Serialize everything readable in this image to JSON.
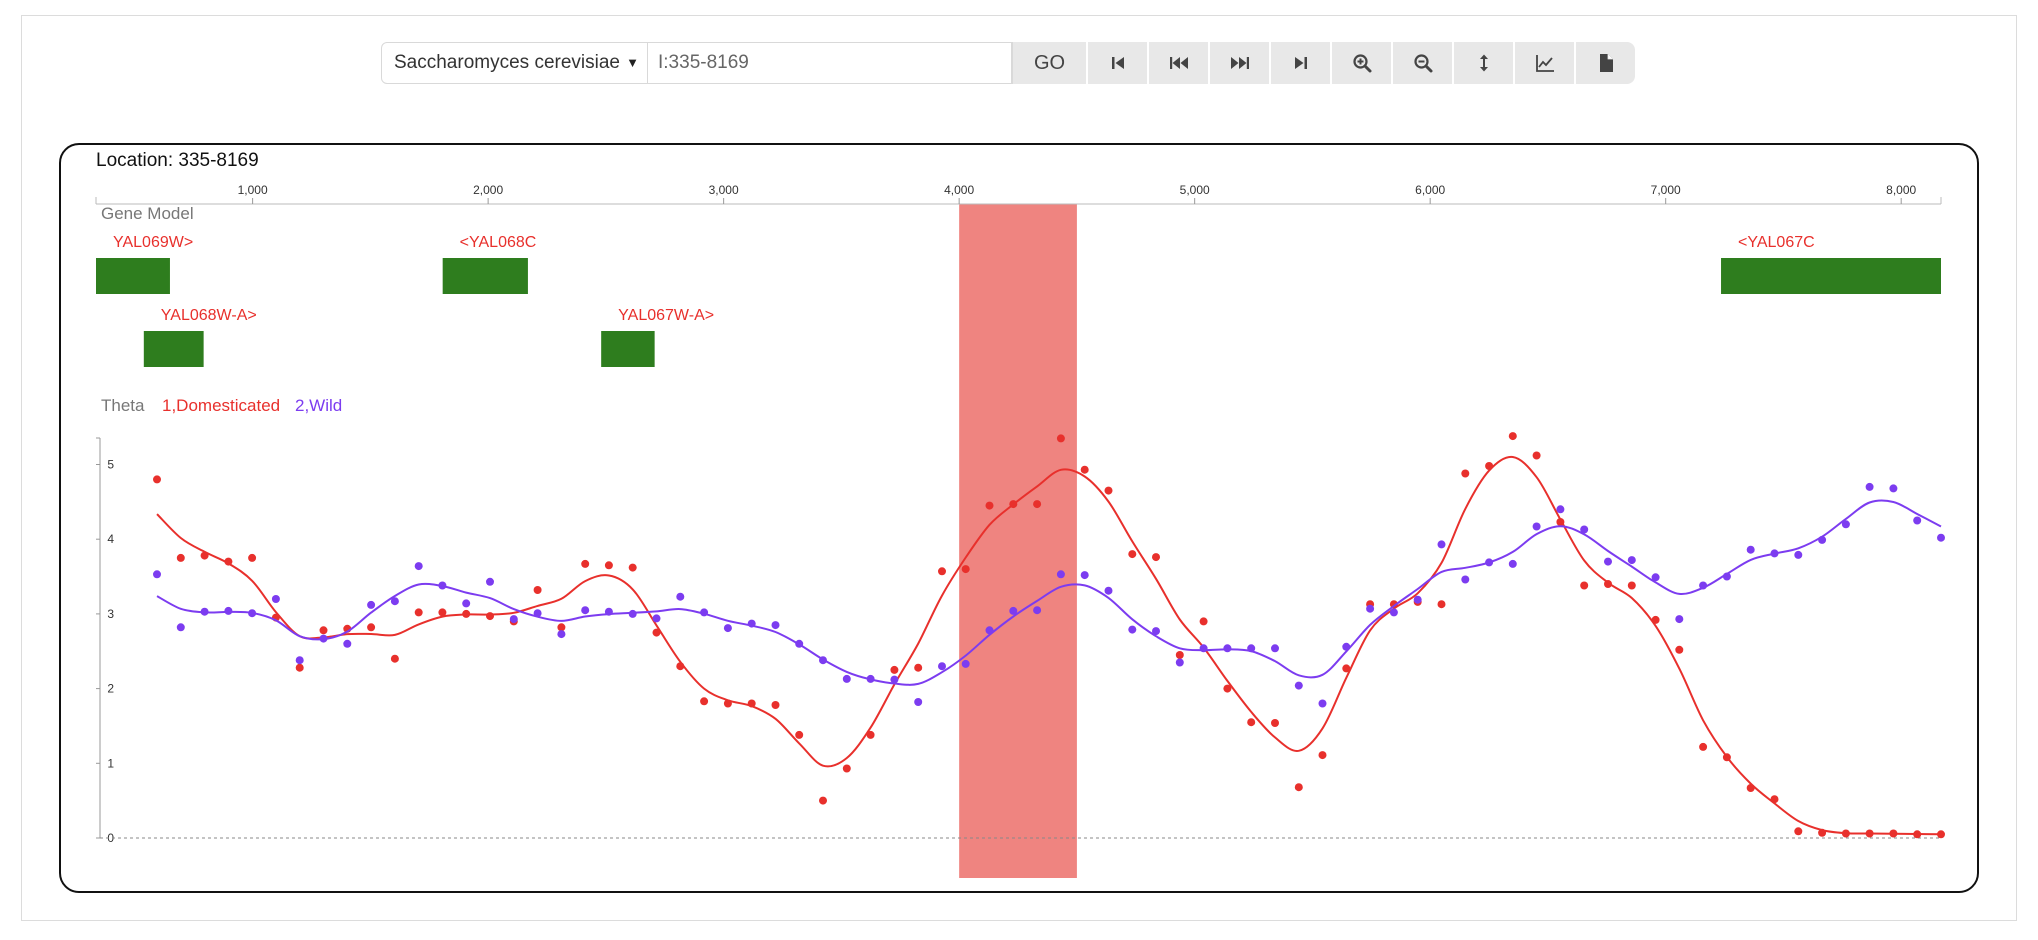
{
  "toolbar": {
    "species": "Saccharomyces cerevisiae",
    "location_value": "I:335-8169",
    "go_label": "GO",
    "buttons": [
      "jump-start",
      "step-back",
      "step-forward",
      "jump-end",
      "zoom-in",
      "zoom-out",
      "expand-height",
      "line-chart",
      "export"
    ]
  },
  "panel": {
    "location_label": "Location: 335-8169",
    "gene_model_label": "Gene Model",
    "ruler": {
      "range": [
        335,
        8169
      ],
      "ticks": [
        1000,
        2000,
        3000,
        4000,
        5000,
        6000,
        7000,
        8000
      ],
      "tick_labels": [
        "1,000",
        "2,000",
        "3,000",
        "4,000",
        "5,000",
        "6,000",
        "7,000",
        "8,000"
      ]
    },
    "genes": [
      {
        "name": "YAL069W>",
        "start": 335,
        "end": 649,
        "row": 0
      },
      {
        "name": "<YAL068C",
        "start": 1807,
        "end": 2169,
        "row": 0
      },
      {
        "name": "<YAL067C",
        "start": 7235,
        "end": 8169,
        "row": 0
      },
      {
        "name": "YAL068W-A>",
        "start": 538,
        "end": 792,
        "row": 1
      },
      {
        "name": "YAL067W-A>",
        "start": 2480,
        "end": 2707,
        "row": 1
      }
    ],
    "highlight": {
      "start": 4000,
      "end": 4500,
      "color": "#ef8480"
    },
    "colors": {
      "gene": "#2e7d1e",
      "gene_label": "#e8302c",
      "domesticated": "#e8302c",
      "wild": "#7c3cf0"
    }
  },
  "chart_data": {
    "type": "line",
    "legend_title": "Theta",
    "xlim": [
      335,
      8169
    ],
    "ylim": [
      0,
      5.5
    ],
    "y_ticks": [
      0,
      1,
      2,
      3,
      4,
      5
    ],
    "series": [
      {
        "name": "1,Domesticated",
        "color": "#e8302c",
        "x": [
          594,
          695,
          796,
          897,
          998,
          1099,
          1200,
          1301,
          1402,
          1503,
          1604,
          1705,
          1806,
          1907,
          2008,
          2109,
          2210,
          2311,
          2412,
          2513,
          2614,
          2715,
          2816,
          2917,
          3018,
          3119,
          3220,
          3321,
          3422,
          3523,
          3624,
          3725,
          3826,
          3927,
          4028,
          4129,
          4230,
          4331,
          4432,
          4533,
          4634,
          4735,
          4836,
          4937,
          5038,
          5139,
          5240,
          5341,
          5442,
          5543,
          5644,
          5745,
          5846,
          5947,
          6048,
          6149,
          6250,
          6351,
          6452,
          6553,
          6654,
          6755,
          6856,
          6957,
          7058,
          7159,
          7260,
          7361,
          7462,
          7563,
          7664,
          7765,
          7866,
          7967,
          8068,
          8169
        ],
        "y": [
          4.8,
          3.75,
          3.78,
          3.7,
          3.75,
          2.95,
          2.28,
          2.78,
          2.8,
          2.82,
          2.4,
          3.02,
          3.02,
          3.0,
          2.97,
          2.9,
          3.32,
          2.82,
          3.67,
          3.65,
          3.62,
          2.75,
          2.3,
          1.83,
          1.8,
          1.8,
          1.78,
          1.38,
          0.5,
          0.93,
          1.38,
          2.25,
          2.28,
          3.57,
          3.6,
          4.45,
          4.47,
          4.47,
          5.35,
          4.93,
          4.65,
          3.8,
          3.76,
          2.45,
          2.9,
          2.0,
          1.55,
          1.54,
          0.68,
          1.11,
          2.27,
          3.13,
          3.13,
          3.16,
          3.13,
          4.88,
          4.98,
          5.38,
          5.12,
          4.23,
          3.38,
          3.4,
          3.38,
          2.92,
          2.52,
          1.22,
          1.08,
          0.67,
          0.52,
          0.09,
          0.07,
          0.06,
          0.06,
          0.06,
          0.05,
          0.05
        ]
      },
      {
        "name": "2,Wild",
        "color": "#7c3cf0",
        "x": [
          594,
          695,
          796,
          897,
          998,
          1099,
          1200,
          1301,
          1402,
          1503,
          1604,
          1705,
          1806,
          1907,
          2008,
          2109,
          2210,
          2311,
          2412,
          2513,
          2614,
          2715,
          2816,
          2917,
          3018,
          3119,
          3220,
          3321,
          3422,
          3523,
          3624,
          3725,
          3826,
          3927,
          4028,
          4129,
          4230,
          4331,
          4432,
          4533,
          4634,
          4735,
          4836,
          4937,
          5038,
          5139,
          5240,
          5341,
          5442,
          5543,
          5644,
          5745,
          5846,
          5947,
          6048,
          6149,
          6250,
          6351,
          6452,
          6553,
          6654,
          6755,
          6856,
          6957,
          7058,
          7159,
          7260,
          7361,
          7462,
          7563,
          7664,
          7765,
          7866,
          7967,
          8068,
          8169
        ],
        "y": [
          3.53,
          2.82,
          3.03,
          3.04,
          3.01,
          3.2,
          2.38,
          2.67,
          2.6,
          3.12,
          3.17,
          3.64,
          3.38,
          3.14,
          3.43,
          2.93,
          3.01,
          2.73,
          3.05,
          3.03,
          3.0,
          2.94,
          3.23,
          3.02,
          2.81,
          2.87,
          2.85,
          2.6,
          2.38,
          2.13,
          2.13,
          2.12,
          1.82,
          2.3,
          2.33,
          2.78,
          3.04,
          3.05,
          3.53,
          3.52,
          3.31,
          2.79,
          2.77,
          2.35,
          2.54,
          2.54,
          2.54,
          2.54,
          2.04,
          1.8,
          2.56,
          3.07,
          3.02,
          3.19,
          3.93,
          3.46,
          3.69,
          3.67,
          4.17,
          4.4,
          4.13,
          3.7,
          3.72,
          3.49,
          2.93,
          3.38,
          3.5,
          3.86,
          3.81,
          3.79,
          3.99,
          4.2,
          4.7,
          4.68,
          4.25,
          4.02
        ]
      }
    ]
  }
}
